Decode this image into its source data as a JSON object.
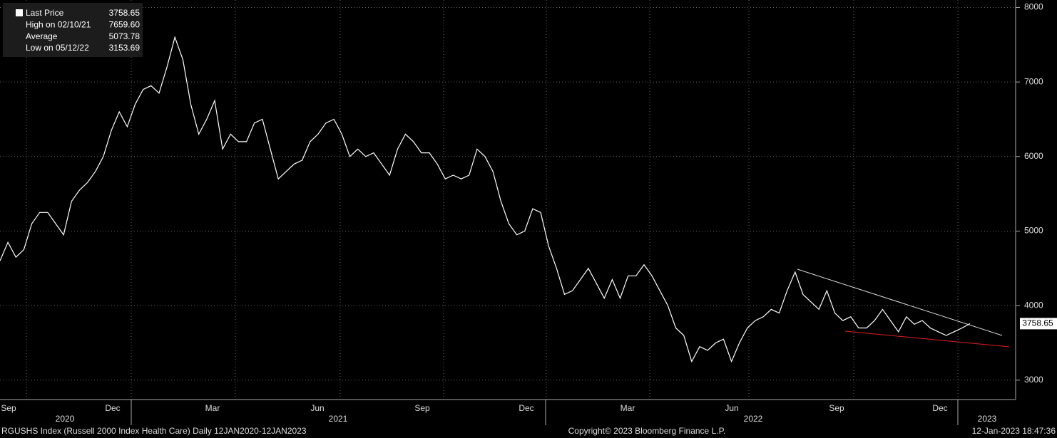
{
  "chart_data": {
    "type": "line",
    "legend": [
      {
        "label": "Last Price",
        "value": "3758.65"
      },
      {
        "label": "High on 02/10/21",
        "value": "7659.60"
      },
      {
        "label": "Average",
        "value": "5073.78"
      },
      {
        "label": "Low on 05/12/22",
        "value": "3153.69"
      }
    ],
    "months": [
      "Sep",
      "Dec",
      "Mar",
      "Jun",
      "Sep",
      "Dec",
      "Mar",
      "Jun",
      "Sep",
      "Dec"
    ],
    "years": [
      "2020",
      "2021",
      "2022",
      "2023"
    ],
    "series": [
      {
        "name": "Last Price",
        "color": "#ffffff",
        "values": [
          4600,
          4850,
          4650,
          4750,
          5100,
          5250,
          5250,
          5100,
          4950,
          5400,
          5550,
          5650,
          5800,
          6000,
          6350,
          6600,
          6400,
          6700,
          6900,
          6950,
          6850,
          7200,
          7600,
          7300,
          6700,
          6300,
          6500,
          6750,
          6100,
          6300,
          6200,
          6200,
          6450,
          6500,
          6100,
          5700,
          5800,
          5900,
          5950,
          6200,
          6300,
          6450,
          6500,
          6300,
          6000,
          6100,
          6000,
          6050,
          5900,
          5750,
          6100,
          6300,
          6200,
          6050,
          6050,
          5900,
          5700,
          5750,
          5700,
          5750,
          6100,
          6000,
          5800,
          5400,
          5100,
          4950,
          5000,
          5300,
          5250,
          4800,
          4500,
          4150,
          4200,
          4350,
          4500,
          4300,
          4100,
          4350,
          4100,
          4400,
          4400,
          4550,
          4400,
          4200,
          4000,
          3700,
          3600,
          3250,
          3450,
          3400,
          3500,
          3550,
          3250,
          3500,
          3700,
          3800,
          3850,
          3950,
          3900,
          4200,
          4450,
          4150,
          4050,
          3950,
          4200,
          3900,
          3800,
          3850,
          3700,
          3700,
          3800,
          3950,
          3800,
          3650,
          3850,
          3750,
          3800,
          3700,
          3650,
          3600,
          3650,
          3700,
          3758.65
        ]
      }
    ],
    "last_label": "3758.65",
    "ylim": [
      2740,
      8100
    ],
    "yticks": [
      3000,
      4000,
      5000,
      6000,
      7000,
      8000
    ],
    "footer_left": "RGUSHS Index (Russell 2000 Index Health Care)  Daily 12JAN2020-12JAN2023",
    "footer_center": "Copyright© 2023 Bloomberg Finance L.P.",
    "footer_right": "12-Jan-2023 18:47:36"
  }
}
